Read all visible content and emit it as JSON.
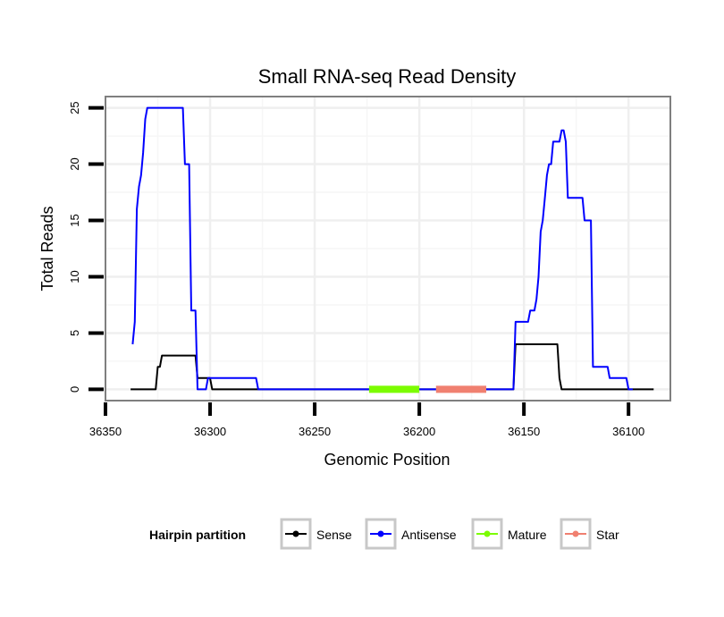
{
  "chart_data": {
    "type": "line",
    "title": "Small RNA-seq Read Density",
    "xlabel": "Genomic Position",
    "ylabel": "Total Reads",
    "xlim": [
      36350,
      36080
    ],
    "ylim": [
      -1,
      26
    ],
    "x_reversed": true,
    "x_ticks": [
      36350,
      36300,
      36250,
      36200,
      36150,
      36100
    ],
    "y_ticks": [
      0,
      5,
      10,
      15,
      20,
      25
    ],
    "grid": true,
    "legend": {
      "title": "Hairpin partition",
      "placement": "bottom",
      "entries": [
        {
          "name": "Sense",
          "color": "#000000"
        },
        {
          "name": "Antisense",
          "color": "#0000ff"
        },
        {
          "name": "Mature",
          "color": "#7cfc00"
        },
        {
          "name": "Star",
          "color": "#f08070"
        }
      ]
    },
    "series": [
      {
        "name": "Sense",
        "color": "#000000",
        "points": [
          [
            36338,
            0
          ],
          [
            36326,
            0
          ],
          [
            36325,
            2
          ],
          [
            36324,
            2
          ],
          [
            36323,
            3
          ],
          [
            36307,
            3
          ],
          [
            36306,
            1
          ],
          [
            36300,
            1
          ],
          [
            36299,
            0
          ],
          [
            36155,
            0
          ],
          [
            36154,
            4
          ],
          [
            36134,
            4
          ],
          [
            36133,
            1
          ],
          [
            36132,
            0
          ],
          [
            36088,
            0
          ]
        ]
      },
      {
        "name": "Antisense",
        "color": "#0000ff",
        "points": [
          [
            36337,
            4
          ],
          [
            36336,
            6
          ],
          [
            36335,
            16
          ],
          [
            36334,
            18
          ],
          [
            36333,
            19
          ],
          [
            36332,
            21
          ],
          [
            36331,
            24
          ],
          [
            36330,
            25
          ],
          [
            36313,
            25
          ],
          [
            36312,
            20
          ],
          [
            36310,
            20
          ],
          [
            36309,
            7
          ],
          [
            36307,
            7
          ],
          [
            36306,
            0
          ],
          [
            36302,
            0
          ],
          [
            36301,
            1
          ],
          [
            36278,
            1
          ],
          [
            36277,
            0
          ],
          [
            36155,
            0
          ],
          [
            36154,
            6
          ],
          [
            36148,
            6
          ],
          [
            36147,
            7
          ],
          [
            36145,
            7
          ],
          [
            36144,
            8
          ],
          [
            36143,
            10
          ],
          [
            36142,
            14
          ],
          [
            36141,
            15
          ],
          [
            36140,
            17
          ],
          [
            36139,
            19
          ],
          [
            36138,
            20
          ],
          [
            36137,
            20
          ],
          [
            36136,
            22
          ],
          [
            36133,
            22
          ],
          [
            36132,
            23
          ],
          [
            36131,
            23
          ],
          [
            36130,
            22
          ],
          [
            36129,
            17
          ],
          [
            36122,
            17
          ],
          [
            36121,
            15
          ],
          [
            36118,
            15
          ],
          [
            36117,
            2
          ],
          [
            36110,
            2
          ],
          [
            36109,
            1
          ],
          [
            36101,
            1
          ],
          [
            36100,
            0
          ],
          [
            36098,
            0
          ]
        ]
      },
      {
        "name": "Mature",
        "color": "#7cfc00",
        "points": [
          [
            36224,
            0
          ],
          [
            36200,
            0
          ]
        ]
      },
      {
        "name": "Star",
        "color": "#f08070",
        "points": [
          [
            36192,
            0
          ],
          [
            36168,
            0
          ]
        ]
      }
    ]
  }
}
